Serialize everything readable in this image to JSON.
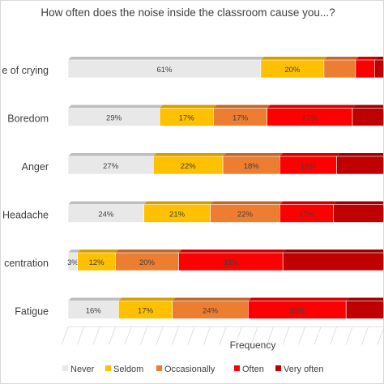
{
  "chart_data": {
    "type": "bar",
    "orientation": "horizontal",
    "stacked": true,
    "percent_stacked": true,
    "title": "How often does the noise inside the classroom cause you...?",
    "xlabel": "Frequency",
    "ylabel": "",
    "xlim": [
      0,
      100
    ],
    "categories": [
      "Feeling of crying",
      "Boredom",
      "Anger",
      "Headache",
      "Lack of concentration",
      "Fatigue"
    ],
    "category_labels_visible": [
      "e of crying",
      "Boredom",
      "Anger",
      "Headache",
      "centration",
      "Fatigue"
    ],
    "series": [
      {
        "name": "Never",
        "color": "#e8e8e8",
        "values": [
          61,
          29,
          27,
          24,
          3,
          16
        ],
        "labels": [
          "61%",
          "29%",
          "27%",
          "24%",
          "3%",
          "16%"
        ]
      },
      {
        "name": "Seldom",
        "color": "#ffc000",
        "values": [
          20,
          17,
          22,
          21,
          12,
          17
        ],
        "labels": [
          "20%",
          "17%",
          "22%",
          "21%",
          "12%",
          "17%"
        ]
      },
      {
        "name": "Occasionally",
        "color": "#ed7d31",
        "values": [
          10,
          17,
          18,
          22,
          20,
          24
        ],
        "labels": [
          "",
          "17%",
          "18%",
          "22%",
          "20%",
          "24%"
        ]
      },
      {
        "name": "Often",
        "color": "#ff0000",
        "values": [
          6,
          27,
          18,
          17,
          33,
          31
        ],
        "labels": [
          "",
          "27%",
          "18%",
          "17%",
          "33%",
          "31%"
        ]
      },
      {
        "name": "Very often",
        "color": "#c00000",
        "values": [
          3,
          10,
          15,
          16,
          32,
          12
        ],
        "labels": [
          "",
          "",
          "",
          "",
          "",
          ""
        ]
      }
    ],
    "grid": true,
    "legend_position": "bottom"
  }
}
